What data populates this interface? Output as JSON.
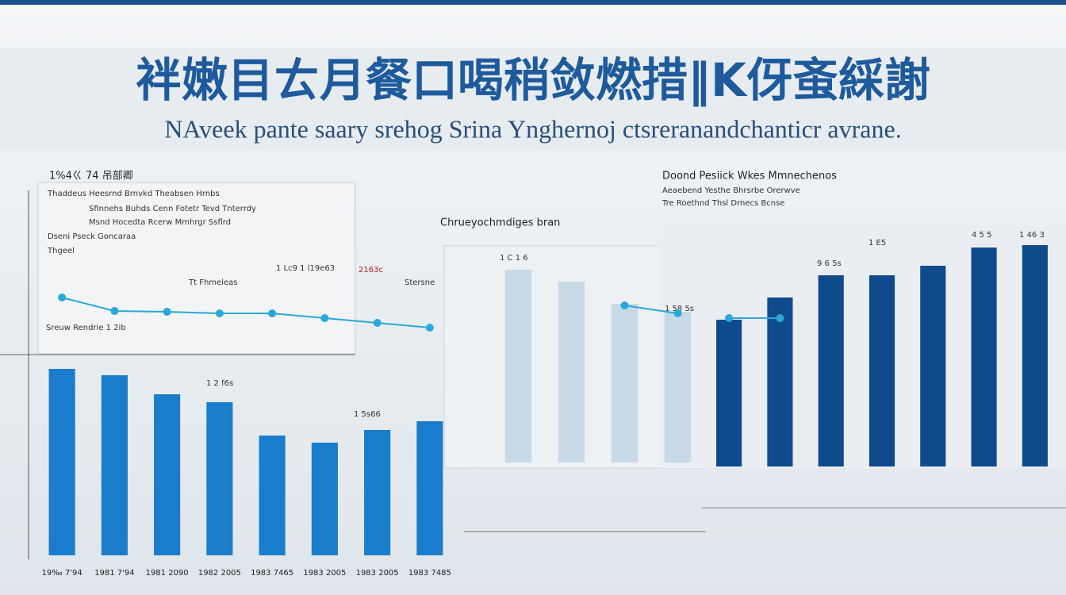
{
  "header": {
    "title": "袢嫩目ㄊ月餐口喝稍敛燃措‖K伢蚉綵謝",
    "subtitle": "NAveek pante saary srehog Srina Ynghernoj ctsreranandchanticr avrane."
  },
  "chart_data": [
    {
      "type": "bar",
      "title": "1%4ㄍ 74 吊部卿",
      "annotations": [
        "Thaddeus Heesrnd Brnvkd Theabsen Hrnbs",
        "Sfinnehs Buhds Cenn Fotetr Tevd Tnterrdy",
        "Msnd Hocedta Rcerw Mmhrgr Ssflrd",
        "Dseni Pseck Goncaraa",
        "Thgeel",
        "Tt Fhmeleas",
        "Sreuw Rendrie 1 2ib",
        "1 Lc9 1 l19e63",
        "2163c",
        "Stersne",
        "1 2 f6s",
        "1 5s66"
      ],
      "categories": [
        "19‰ 7'94",
        "1981 7'94",
        "1981 2090",
        "1982 2005",
        "1983 7465",
        "1983 2005",
        "1983 2005",
        "1983 7485"
      ],
      "series": [
        {
          "name": "Bars",
          "color": "#1a7dcc",
          "values": [
            235,
            227,
            203,
            193,
            151,
            142,
            158,
            169
          ]
        },
        {
          "name": "Trend",
          "color": "#2aa8d8",
          "values": [
            325,
            308,
            307,
            305,
            305,
            299,
            293,
            287
          ]
        }
      ],
      "ylim": [
        0,
        400
      ]
    },
    {
      "type": "bar",
      "title": "Chrueyochmdiges bran",
      "annotations": [
        "1 C 1 6",
        "1 58 5s"
      ],
      "categories": [
        null,
        null,
        null,
        null
      ],
      "series": [
        {
          "name": "Bars",
          "color": "#c8dae8",
          "values": [
            243,
            228,
            200,
            190
          ]
        },
        {
          "name": "Trend",
          "color": "#2aa8d8",
          "values": [
            null,
            null,
            198,
            188
          ]
        }
      ],
      "ylim": [
        0,
        300
      ]
    },
    {
      "type": "bar",
      "title": "Doond Pesiick Wkes Mmnechenos",
      "annotations": [
        "Aeaebend Yesthe Bhrsrbe Orerwve",
        "Tre Roethnd Thsl Drnecs Bcnse",
        "9 6 5s",
        "1 E5",
        "4 5 5",
        "1 46 3"
      ],
      "categories": [
        null,
        null,
        null,
        null,
        null,
        null,
        null
      ],
      "series": [
        {
          "name": "Bars",
          "color": "#0e4a8c",
          "values": [
            185,
            213,
            241,
            241,
            253,
            276,
            279
          ]
        },
        {
          "name": "Trend",
          "color": "#2aa8d8",
          "values": [
            187,
            187,
            null,
            null,
            null,
            null,
            null
          ]
        }
      ],
      "ylim": [
        0,
        300
      ]
    }
  ]
}
